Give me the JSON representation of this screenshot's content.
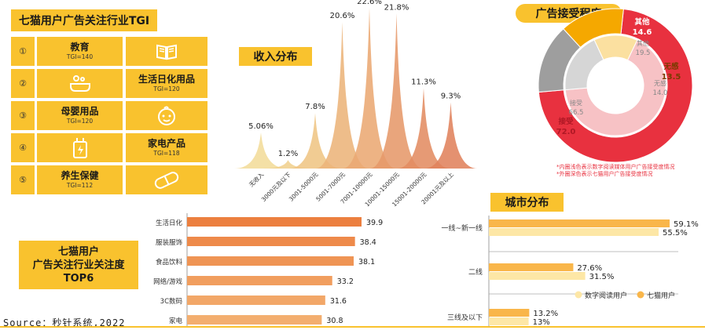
{
  "tgi": {
    "title": "七猫用户广告关注行业TGI",
    "items": [
      {
        "num": "①",
        "name": "教育",
        "tgi": "TGI=140",
        "icon": "book-icon"
      },
      {
        "num": "②",
        "name": "生活日化用品",
        "tgi": "TGI=120",
        "icon": "bath-icon"
      },
      {
        "num": "③",
        "name": "母婴用品",
        "tgi": "TGI=120",
        "icon": "baby-face-icon"
      },
      {
        "num": "④",
        "name": "家电产品",
        "tgi": "TGI=118",
        "icon": "charger-icon"
      },
      {
        "num": "⑤",
        "name": "养生保健",
        "tgi": "TGI=112",
        "icon": "pill-icon"
      }
    ]
  },
  "income": {
    "title": "收入分布",
    "chart_data": {
      "type": "area",
      "categories": [
        "无收入",
        "3000元及以下",
        "3001-5000元",
        "5001-7000元",
        "7001-10000元",
        "10001-15000元",
        "15001-20000元",
        "20001元及以上"
      ],
      "values": [
        5.06,
        1.2,
        7.8,
        20.6,
        22.6,
        21.8,
        11.3,
        9.3
      ],
      "labels": [
        "5.06%",
        "1.2%",
        "7.8%",
        "20.6%",
        "22.6%",
        "21.8%",
        "11.3%",
        "9.3%"
      ],
      "colors": [
        "#f2dc9a",
        "#f0d08e",
        "#efc584",
        "#ecb47a",
        "#eaa873",
        "#e6986a",
        "#e38c62",
        "#e0825c"
      ]
    }
  },
  "acceptance": {
    "title": "广告接受程度",
    "chart_data": {
      "type": "pie",
      "outer": [
        {
          "name": "接受",
          "value": 72.0,
          "label": "接受",
          "label_value": "72.0",
          "color": "#e8313f"
        },
        {
          "name": "其他",
          "value": 14.6,
          "label": "其他",
          "label_value": "14.6",
          "color": "#9e9e9e"
        },
        {
          "name": "无感",
          "value": 13.5,
          "label": "无感",
          "label_value": "13.5",
          "color": "#f5a800"
        }
      ],
      "inner": [
        {
          "name": "接受",
          "value": 66.5,
          "label": "接受",
          "label_value": "66.5",
          "color": "#f7c2c5"
        },
        {
          "name": "其他",
          "value": 19.5,
          "label": "其他",
          "label_value": "19.5",
          "color": "#d6d6d6"
        },
        {
          "name": "无感",
          "value": 14.0,
          "label": "无感",
          "label_value": "14.0",
          "color": "#fbe0a0"
        }
      ]
    },
    "notes": [
      "*内圈浅色表示数字阅读媒体用户广告接受度情况",
      "*外圈深色表示七猫用户广告接受度情况"
    ]
  },
  "attention": {
    "title_lines": [
      "七猫用户",
      "广告关注行业关注度",
      "TOP6"
    ],
    "chart_data": {
      "type": "bar",
      "categories": [
        "生活日化",
        "服装服饰",
        "食品饮料",
        "网络/游戏",
        "3C数码",
        "家电"
      ],
      "values": [
        39.9,
        38.4,
        38.1,
        33.2,
        31.6,
        30.8
      ],
      "labels": [
        "39.9",
        "38.4",
        "38.1",
        "33.2",
        "31.6",
        "30.8"
      ],
      "colors": [
        "#ec7f3f",
        "#ee8a4a",
        "#ef9454",
        "#f19e5e",
        "#f2a768",
        "#f3ae6f"
      ]
    }
  },
  "city": {
    "title": "城市分布",
    "chart_data": {
      "type": "bar",
      "categories": [
        "一线~新一线",
        "二线",
        "三线及以下"
      ],
      "series": [
        {
          "name": "七猫用户",
          "values": [
            59.1,
            27.6,
            13.2
          ],
          "labels": [
            "59.1%",
            "27.6%",
            "13.2%"
          ],
          "color": "#f9b64a"
        },
        {
          "name": "数字阅读用户",
          "values": [
            55.5,
            31.5,
            13.0
          ],
          "labels": [
            "55.5%",
            "31.5%",
            "13%"
          ],
          "color": "#fde7a6"
        }
      ],
      "legend": [
        "数字阅读用户",
        "七猫用户"
      ]
    }
  },
  "source": "Source：秒针系统,2022"
}
